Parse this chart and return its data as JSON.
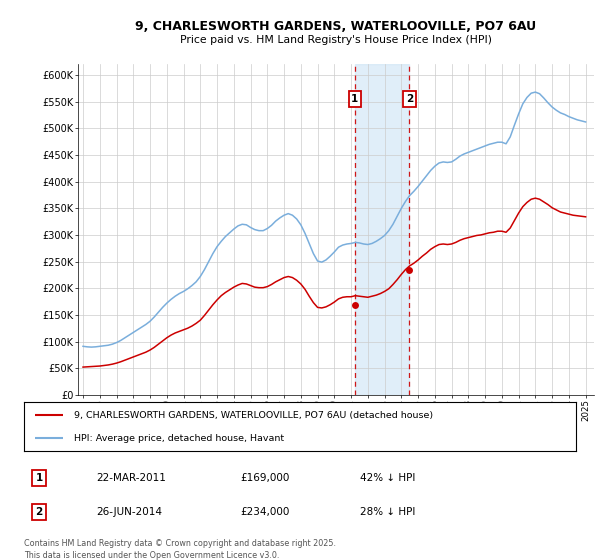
{
  "title": "9, CHARLESWORTH GARDENS, WATERLOOVILLE, PO7 6AU",
  "subtitle": "Price paid vs. HM Land Registry's House Price Index (HPI)",
  "ylim": [
    0,
    620000
  ],
  "xlim_start": 1994.7,
  "xlim_end": 2025.5,
  "yticks": [
    0,
    50000,
    100000,
    150000,
    200000,
    250000,
    300000,
    350000,
    400000,
    450000,
    500000,
    550000,
    600000
  ],
  "ytick_labels": [
    "£0",
    "£50K",
    "£100K",
    "£150K",
    "£200K",
    "£250K",
    "£300K",
    "£350K",
    "£400K",
    "£450K",
    "£500K",
    "£550K",
    "£600K"
  ],
  "sale1_date": 2011.22,
  "sale1_price": 169000,
  "sale1_label": "1",
  "sale2_date": 2014.48,
  "sale2_price": 234000,
  "sale2_label": "2",
  "hpi_color": "#7aaedc",
  "price_color": "#cc0000",
  "annotation_box_color": "#cc0000",
  "grid_color": "#cccccc",
  "background_color": "#ffffff",
  "legend_line1": "9, CHARLESWORTH GARDENS, WATERLOOVILLE, PO7 6AU (detached house)",
  "legend_line2": "HPI: Average price, detached house, Havant",
  "table_row1_num": "1",
  "table_row1_date": "22-MAR-2011",
  "table_row1_price": "£169,000",
  "table_row1_hpi": "42% ↓ HPI",
  "table_row2_num": "2",
  "table_row2_date": "26-JUN-2014",
  "table_row2_price": "£234,000",
  "table_row2_hpi": "28% ↓ HPI",
  "footer": "Contains HM Land Registry data © Crown copyright and database right 2025.\nThis data is licensed under the Open Government Licence v3.0.",
  "hpi_data_x": [
    1995.0,
    1995.25,
    1995.5,
    1995.75,
    1996.0,
    1996.25,
    1996.5,
    1996.75,
    1997.0,
    1997.25,
    1997.5,
    1997.75,
    1998.0,
    1998.25,
    1998.5,
    1998.75,
    1999.0,
    1999.25,
    1999.5,
    1999.75,
    2000.0,
    2000.25,
    2000.5,
    2000.75,
    2001.0,
    2001.25,
    2001.5,
    2001.75,
    2002.0,
    2002.25,
    2002.5,
    2002.75,
    2003.0,
    2003.25,
    2003.5,
    2003.75,
    2004.0,
    2004.25,
    2004.5,
    2004.75,
    2005.0,
    2005.25,
    2005.5,
    2005.75,
    2006.0,
    2006.25,
    2006.5,
    2006.75,
    2007.0,
    2007.25,
    2007.5,
    2007.75,
    2008.0,
    2008.25,
    2008.5,
    2008.75,
    2009.0,
    2009.25,
    2009.5,
    2009.75,
    2010.0,
    2010.25,
    2010.5,
    2010.75,
    2011.0,
    2011.25,
    2011.5,
    2011.75,
    2012.0,
    2012.25,
    2012.5,
    2012.75,
    2013.0,
    2013.25,
    2013.5,
    2013.75,
    2014.0,
    2014.25,
    2014.5,
    2014.75,
    2015.0,
    2015.25,
    2015.5,
    2015.75,
    2016.0,
    2016.25,
    2016.5,
    2016.75,
    2017.0,
    2017.25,
    2017.5,
    2017.75,
    2018.0,
    2018.25,
    2018.5,
    2018.75,
    2019.0,
    2019.25,
    2019.5,
    2019.75,
    2020.0,
    2020.25,
    2020.5,
    2020.75,
    2021.0,
    2021.25,
    2021.5,
    2021.75,
    2022.0,
    2022.25,
    2022.5,
    2022.75,
    2023.0,
    2023.25,
    2023.5,
    2023.75,
    2024.0,
    2024.25,
    2024.5,
    2024.75,
    2025.0
  ],
  "hpi_data_y": [
    91000,
    90000,
    89500,
    90000,
    91000,
    92000,
    93000,
    95000,
    98000,
    102000,
    107000,
    112000,
    117000,
    122000,
    127000,
    132000,
    138000,
    146000,
    155000,
    164000,
    172000,
    179000,
    185000,
    190000,
    194000,
    199000,
    205000,
    212000,
    222000,
    235000,
    250000,
    265000,
    278000,
    288000,
    297000,
    304000,
    311000,
    317000,
    320000,
    319000,
    314000,
    310000,
    308000,
    308000,
    312000,
    318000,
    326000,
    332000,
    337000,
    340000,
    337000,
    330000,
    319000,
    303000,
    284000,
    265000,
    251000,
    249000,
    253000,
    260000,
    268000,
    277000,
    281000,
    283000,
    284000,
    286000,
    285000,
    283000,
    282000,
    284000,
    288000,
    293000,
    299000,
    308000,
    320000,
    335000,
    350000,
    363000,
    374000,
    382000,
    391000,
    401000,
    411000,
    421000,
    429000,
    435000,
    437000,
    436000,
    437000,
    442000,
    448000,
    452000,
    455000,
    458000,
    461000,
    464000,
    467000,
    470000,
    472000,
    474000,
    474000,
    471000,
    484000,
    506000,
    527000,
    546000,
    558000,
    566000,
    568000,
    565000,
    557000,
    548000,
    540000,
    534000,
    529000,
    526000,
    522000,
    519000,
    516000,
    514000,
    512000
  ],
  "price_data_x": [
    1995.0,
    1995.25,
    1995.5,
    1995.75,
    1996.0,
    1996.25,
    1996.5,
    1996.75,
    1997.0,
    1997.25,
    1997.5,
    1997.75,
    1998.0,
    1998.25,
    1998.5,
    1998.75,
    1999.0,
    1999.25,
    1999.5,
    1999.75,
    2000.0,
    2000.25,
    2000.5,
    2000.75,
    2001.0,
    2001.25,
    2001.5,
    2001.75,
    2002.0,
    2002.25,
    2002.5,
    2002.75,
    2003.0,
    2003.25,
    2003.5,
    2003.75,
    2004.0,
    2004.25,
    2004.5,
    2004.75,
    2005.0,
    2005.25,
    2005.5,
    2005.75,
    2006.0,
    2006.25,
    2006.5,
    2006.75,
    2007.0,
    2007.25,
    2007.5,
    2007.75,
    2008.0,
    2008.25,
    2008.5,
    2008.75,
    2009.0,
    2009.25,
    2009.5,
    2009.75,
    2010.0,
    2010.25,
    2010.5,
    2010.75,
    2011.0,
    2011.25,
    2011.5,
    2011.75,
    2012.0,
    2012.25,
    2012.5,
    2012.75,
    2013.0,
    2013.25,
    2013.5,
    2013.75,
    2014.0,
    2014.25,
    2014.5,
    2014.75,
    2015.0,
    2015.25,
    2015.5,
    2015.75,
    2016.0,
    2016.25,
    2016.5,
    2016.75,
    2017.0,
    2017.25,
    2017.5,
    2017.75,
    2018.0,
    2018.25,
    2018.5,
    2018.75,
    2019.0,
    2019.25,
    2019.5,
    2019.75,
    2020.0,
    2020.25,
    2020.5,
    2020.75,
    2021.0,
    2021.25,
    2021.5,
    2021.75,
    2022.0,
    2022.25,
    2022.5,
    2022.75,
    2023.0,
    2023.25,
    2023.5,
    2023.75,
    2024.0,
    2024.25,
    2024.5,
    2024.75,
    2025.0
  ],
  "price_data_y": [
    52000,
    52500,
    53000,
    53500,
    54000,
    55000,
    56000,
    57500,
    59500,
    62000,
    65000,
    68000,
    71000,
    74000,
    77000,
    80000,
    84000,
    89000,
    95000,
    101000,
    107000,
    112000,
    116000,
    119000,
    122000,
    125000,
    129000,
    134000,
    140000,
    149000,
    159000,
    169000,
    178000,
    186000,
    192000,
    197000,
    202000,
    206000,
    209000,
    208000,
    205000,
    202000,
    201000,
    201000,
    203000,
    207000,
    212000,
    216000,
    220000,
    222000,
    220000,
    215000,
    208000,
    198000,
    185000,
    173000,
    164000,
    163000,
    165000,
    169000,
    174000,
    180000,
    183000,
    184000,
    184000,
    186000,
    185000,
    184000,
    183000,
    185000,
    187000,
    190000,
    194000,
    199000,
    207000,
    216000,
    226000,
    235000,
    242000,
    247000,
    253000,
    260000,
    266000,
    273000,
    278000,
    282000,
    283000,
    282000,
    283000,
    286000,
    290000,
    293000,
    295000,
    297000,
    299000,
    300000,
    302000,
    304000,
    305000,
    307000,
    307000,
    305000,
    313000,
    327000,
    341000,
    353000,
    361000,
    367000,
    369000,
    367000,
    362000,
    357000,
    351000,
    347000,
    343000,
    341000,
    339000,
    337000,
    336000,
    335000,
    334000
  ]
}
